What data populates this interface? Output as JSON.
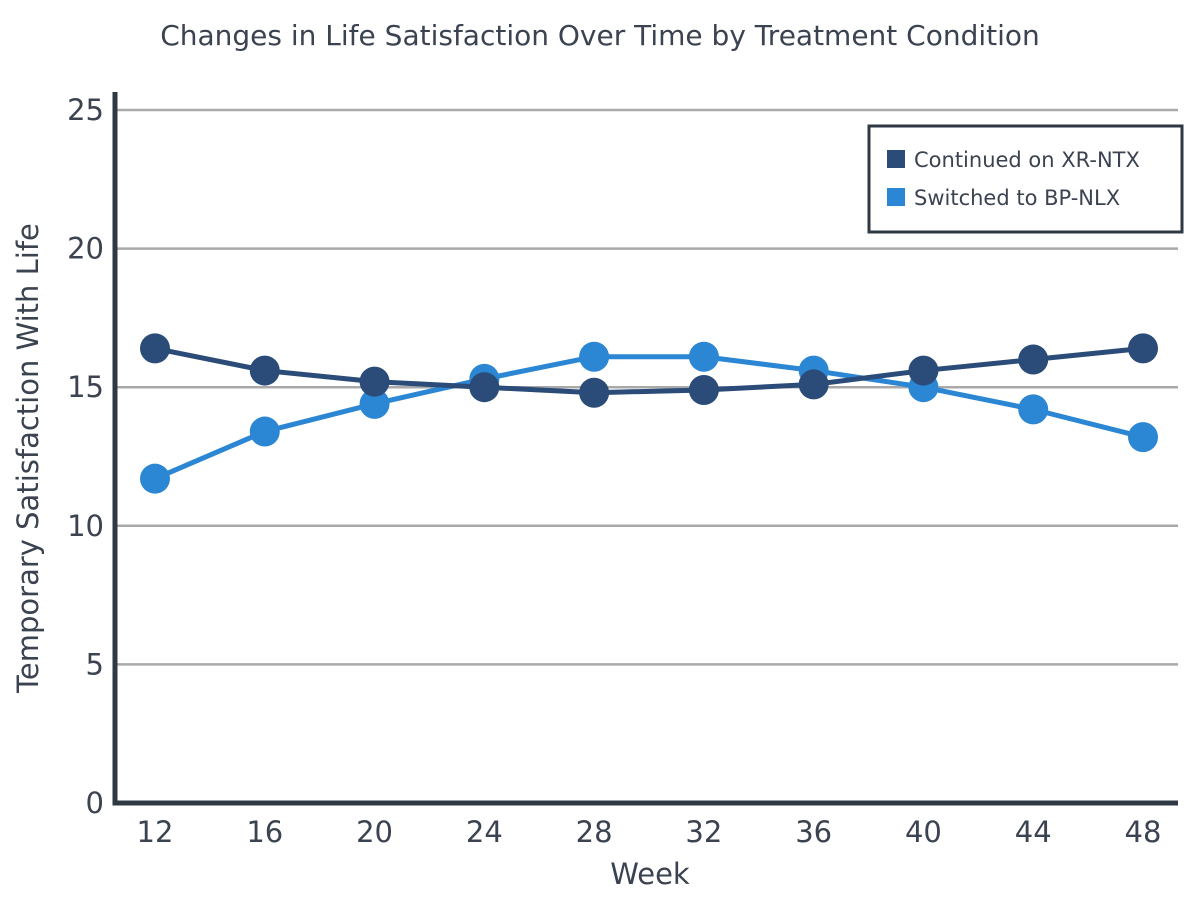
{
  "chart_data": {
    "type": "line",
    "title": "Changes in Life Satisfaction Over Time by Treatment Condition",
    "xlabel": "Week",
    "ylabel": "Temporary Satisfaction With Life",
    "x": [
      12,
      16,
      20,
      24,
      28,
      32,
      36,
      40,
      44,
      48
    ],
    "ylim": [
      0,
      25
    ],
    "yticks": [
      0,
      5,
      10,
      15,
      20,
      25
    ],
    "grid": true,
    "legend_position": "top-right",
    "series": [
      {
        "name": "Continued on XR-NTX",
        "color": "#2b4b78",
        "values": [
          16.4,
          15.6,
          15.2,
          15.0,
          14.8,
          14.9,
          15.1,
          15.6,
          16.0,
          16.4
        ]
      },
      {
        "name": "Switched to BP-NLX",
        "color": "#2b86d4",
        "values": [
          11.7,
          13.4,
          14.4,
          15.3,
          16.1,
          16.1,
          15.6,
          15.0,
          14.2,
          13.2
        ]
      }
    ]
  }
}
